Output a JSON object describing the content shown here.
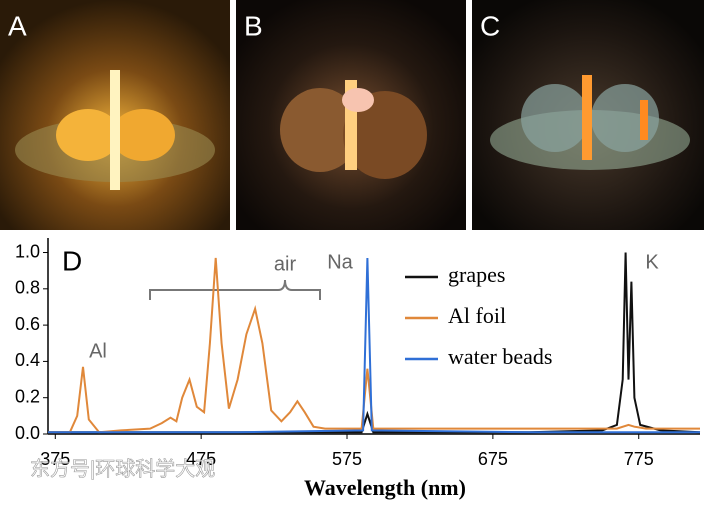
{
  "panels": [
    "A",
    "B",
    "C"
  ],
  "watermark": "东方号|环球科学大观",
  "chart_data": {
    "type": "line",
    "label": "D",
    "x_label": "Wavelength (nm)",
    "xlim": [
      370,
      817
    ],
    "xticks": [
      375,
      475,
      575,
      675,
      775
    ],
    "ylim": [
      0,
      1.08
    ],
    "yticks": [
      {
        "value": 0,
        "label": "0.0"
      },
      0.2,
      0.4,
      0.6,
      0.8,
      {
        "value": 1,
        "label": "1.0"
      }
    ],
    "annotations": [
      "Al",
      "air",
      "Na",
      "K"
    ],
    "series": [
      {
        "name": "grapes",
        "color": "#111111",
        "x": [
          370,
          500,
          585,
          589,
          593,
          700,
          750,
          760,
          764,
          766,
          768,
          770,
          772,
          776,
          790,
          817
        ],
        "values": [
          0.01,
          0.01,
          0.01,
          0.11,
          0.01,
          0.01,
          0.02,
          0.05,
          0.3,
          1.0,
          0.3,
          0.84,
          0.2,
          0.05,
          0.02,
          0.01
        ]
      },
      {
        "name": "Al foil",
        "color": "#e0883a",
        "x": [
          370,
          385,
          390,
          394,
          398,
          405,
          420,
          440,
          448,
          454,
          458,
          462,
          467,
          472,
          477,
          481,
          485,
          489,
          494,
          500,
          506,
          512,
          517,
          523,
          530,
          536,
          541,
          546,
          552,
          560,
          575,
          585,
          589,
          593,
          600,
          650,
          700,
          760,
          768,
          772,
          780,
          817
        ],
        "values": [
          0.01,
          0.01,
          0.1,
          0.37,
          0.08,
          0.01,
          0.02,
          0.03,
          0.06,
          0.09,
          0.07,
          0.2,
          0.3,
          0.15,
          0.12,
          0.5,
          0.97,
          0.5,
          0.14,
          0.3,
          0.55,
          0.69,
          0.5,
          0.13,
          0.07,
          0.12,
          0.18,
          0.12,
          0.04,
          0.03,
          0.03,
          0.03,
          0.36,
          0.03,
          0.03,
          0.03,
          0.03,
          0.03,
          0.05,
          0.04,
          0.03,
          0.03
        ]
      },
      {
        "name": "water beads",
        "color": "#2f6fd6",
        "x": [
          370,
          500,
          586,
          589,
          592,
          700,
          817
        ],
        "values": [
          0.01,
          0.01,
          0.02,
          0.97,
          0.02,
          0.01,
          0.01
        ]
      }
    ]
  }
}
